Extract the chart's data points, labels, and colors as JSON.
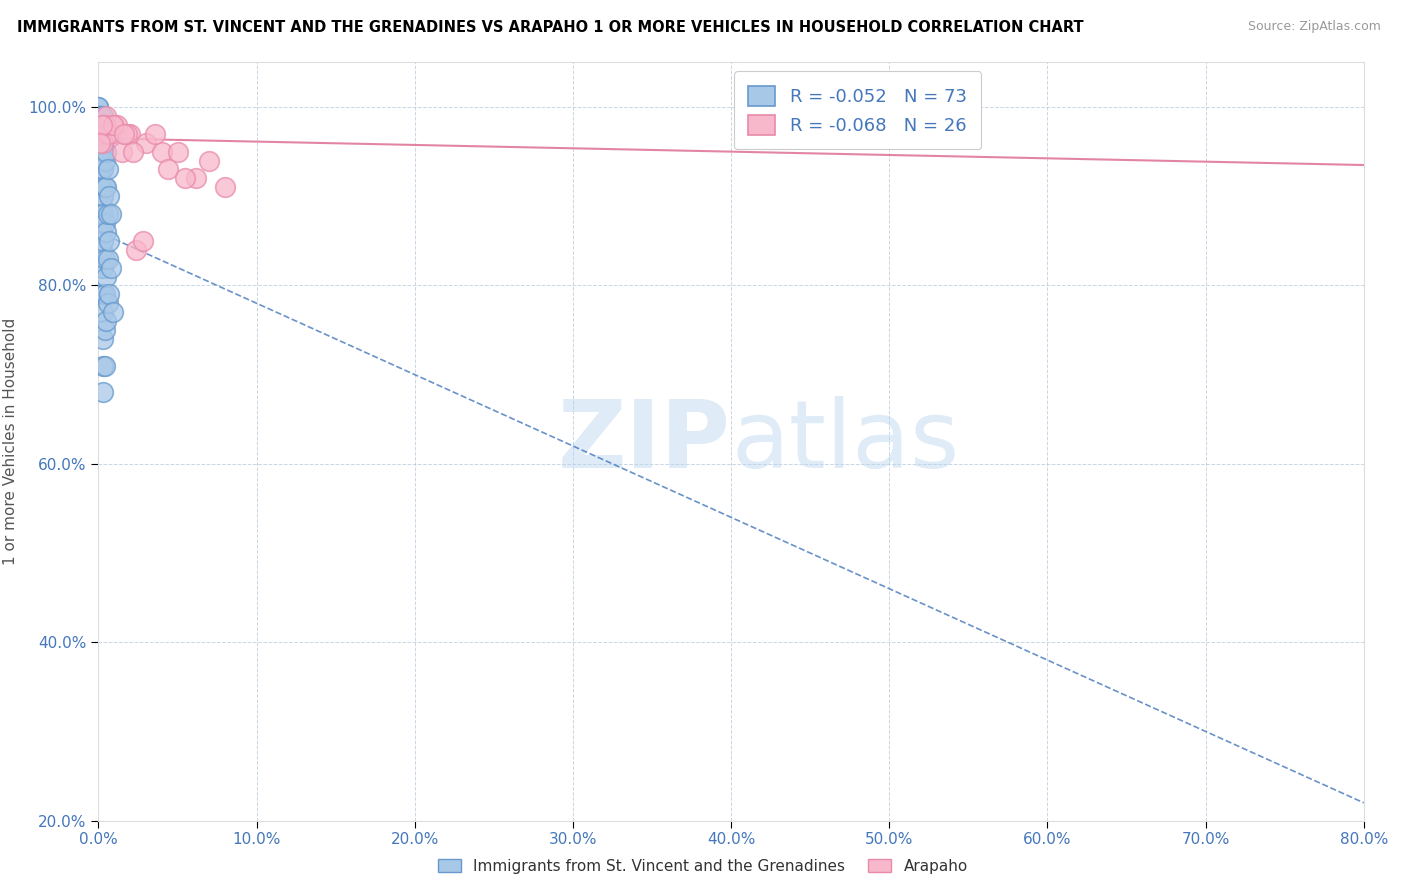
{
  "title": "IMMIGRANTS FROM ST. VINCENT AND THE GRENADINES VS ARAPAHO 1 OR MORE VEHICLES IN HOUSEHOLD CORRELATION CHART",
  "source": "Source: ZipAtlas.com",
  "ylabel": "1 or more Vehicles in Household",
  "legend_label_blue": "Immigrants from St. Vincent and the Grenadines",
  "legend_label_pink": "Arapaho",
  "blue_R": -0.052,
  "blue_N": 73,
  "pink_R": -0.068,
  "pink_N": 26,
  "blue_color": "#a8c8e8",
  "blue_edge": "#6699cc",
  "pink_color": "#f8b8cc",
  "pink_edge": "#e88aaa",
  "blue_line_color": "#4477bb",
  "pink_line_color": "#e07898",
  "text_blue": "#4477bb",
  "watermark_color": "#c8dff0",
  "blue_points_x": [
    0.0,
    0.0,
    0.0,
    0.0,
    0.0,
    0.001,
    0.001,
    0.001,
    0.001,
    0.001,
    0.001,
    0.001,
    0.001,
    0.001,
    0.001,
    0.001,
    0.001,
    0.001,
    0.001,
    0.001,
    0.001,
    0.001,
    0.001,
    0.001,
    0.002,
    0.002,
    0.002,
    0.002,
    0.002,
    0.002,
    0.002,
    0.002,
    0.002,
    0.002,
    0.002,
    0.002,
    0.002,
    0.003,
    0.003,
    0.003,
    0.003,
    0.003,
    0.003,
    0.003,
    0.003,
    0.003,
    0.003,
    0.003,
    0.003,
    0.003,
    0.004,
    0.004,
    0.004,
    0.004,
    0.004,
    0.004,
    0.004,
    0.004,
    0.005,
    0.005,
    0.005,
    0.005,
    0.005,
    0.006,
    0.006,
    0.006,
    0.006,
    0.007,
    0.007,
    0.007,
    0.008,
    0.008,
    0.009
  ],
  "blue_points_y": [
    1.0,
    1.0,
    0.99,
    0.99,
    0.99,
    0.99,
    0.98,
    0.98,
    0.97,
    0.97,
    0.97,
    0.96,
    0.96,
    0.96,
    0.96,
    0.95,
    0.95,
    0.95,
    0.94,
    0.94,
    0.93,
    0.92,
    0.91,
    0.88,
    0.99,
    0.98,
    0.97,
    0.96,
    0.95,
    0.93,
    0.91,
    0.89,
    0.88,
    0.86,
    0.84,
    0.82,
    0.79,
    0.99,
    0.97,
    0.95,
    0.93,
    0.9,
    0.88,
    0.85,
    0.82,
    0.79,
    0.77,
    0.74,
    0.71,
    0.68,
    0.97,
    0.94,
    0.91,
    0.87,
    0.83,
    0.79,
    0.75,
    0.71,
    0.95,
    0.91,
    0.86,
    0.81,
    0.76,
    0.93,
    0.88,
    0.83,
    0.78,
    0.9,
    0.85,
    0.79,
    0.88,
    0.82,
    0.77
  ],
  "pink_points_x": [
    0.005,
    0.01,
    0.02,
    0.008,
    0.003,
    0.03,
    0.04,
    0.015,
    0.024,
    0.012,
    0.036,
    0.006,
    0.018,
    0.05,
    0.022,
    0.062,
    0.07,
    0.08,
    0.004,
    0.009,
    0.044,
    0.016,
    0.002,
    0.028,
    0.055,
    0.001
  ],
  "pink_points_y": [
    0.99,
    0.98,
    0.97,
    0.97,
    0.96,
    0.96,
    0.95,
    0.95,
    0.84,
    0.98,
    0.97,
    0.97,
    0.97,
    0.95,
    0.95,
    0.92,
    0.94,
    0.91,
    0.98,
    0.98,
    0.93,
    0.97,
    0.98,
    0.85,
    0.92,
    0.96
  ],
  "blue_trend_x0": 0.0,
  "blue_trend_x1": 0.8,
  "blue_trend_y0": 0.86,
  "blue_trend_y1": 0.22,
  "pink_trend_x0": 0.0,
  "pink_trend_x1": 0.8,
  "pink_trend_y0": 0.965,
  "pink_trend_y1": 0.935,
  "xlim": [
    0.0,
    0.8
  ],
  "ylim": [
    0.2,
    1.05
  ],
  "xticks": [
    0.0,
    0.1,
    0.2,
    0.3,
    0.4,
    0.5,
    0.6,
    0.7,
    0.8
  ],
  "yticks": [
    0.2,
    0.4,
    0.6,
    0.8,
    1.0
  ]
}
